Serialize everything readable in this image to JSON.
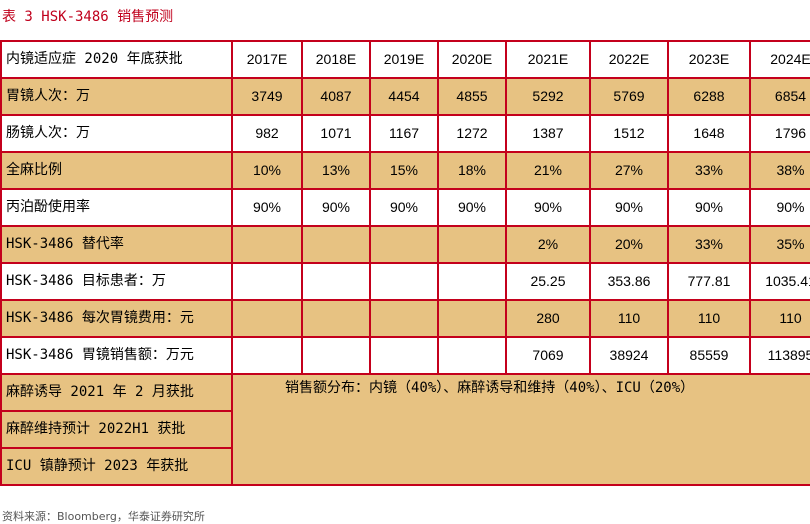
{
  "caption": "表 3 HSK-3486 销售预测",
  "table": {
    "corner": "内镜适应症 2020 年底获批",
    "years": [
      "2017E",
      "2018E",
      "2019E",
      "2020E",
      "2021E",
      "2022E",
      "2023E",
      "2024E"
    ],
    "rows": [
      {
        "label": "胃镜人次：万",
        "values": [
          "3749",
          "4087",
          "4454",
          "4855",
          "5292",
          "5769",
          "6288",
          "6854"
        ]
      },
      {
        "label": "肠镜人次：万",
        "values": [
          "982",
          "1071",
          "1167",
          "1272",
          "1387",
          "1512",
          "1648",
          "1796"
        ]
      },
      {
        "label": "全麻比例",
        "values": [
          "10%",
          "13%",
          "15%",
          "18%",
          "21%",
          "27%",
          "33%",
          "38%"
        ]
      },
      {
        "label": "丙泊酚使用率",
        "values": [
          "90%",
          "90%",
          "90%",
          "90%",
          "90%",
          "90%",
          "90%",
          "90%"
        ]
      },
      {
        "label": "HSK-3486 替代率",
        "values": [
          "",
          "",
          "",
          "",
          "2%",
          "20%",
          "33%",
          "35%"
        ]
      },
      {
        "label": "HSK-3486 目标患者：万",
        "values": [
          "",
          "",
          "",
          "",
          "25.25",
          "353.86",
          "777.81",
          "1035.41"
        ]
      },
      {
        "label": "HSK-3486 每次胃镜费用：元",
        "values": [
          "",
          "",
          "",
          "",
          "280",
          "110",
          "110",
          "110"
        ]
      },
      {
        "label": "HSK-3486 胃镜销售额：万元",
        "values": [
          "",
          "",
          "",
          "",
          "7069",
          "38924",
          "85559",
          "113895"
        ]
      }
    ],
    "approvals": [
      "麻醉诱导 2021 年 2 月获批",
      "麻醉维持预计 2022H1 获批",
      "ICU 镇静预计 2023 年获批"
    ],
    "distribution_note": "销售额分布：内镜（40%）、麻醉诱导和维持（40%）、ICU（20%）"
  },
  "source": "资料来源：Bloomberg，华泰证券研究所"
}
